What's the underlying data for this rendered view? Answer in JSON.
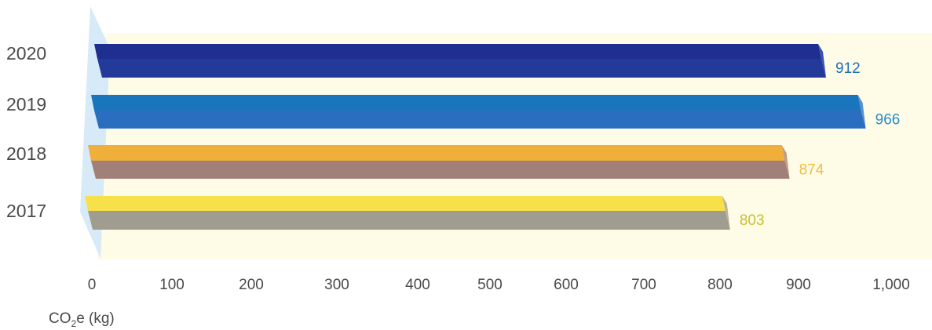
{
  "chart_data": {
    "type": "bar",
    "orientation": "horizontal",
    "style": "3d",
    "categories": [
      "2020",
      "2019",
      "2018",
      "2017"
    ],
    "values": [
      912,
      966,
      874,
      803
    ],
    "value_labels": [
      "912",
      "966",
      "874",
      "803"
    ],
    "xlabel_main": "CO",
    "xlabel_subscript": "2",
    "xlabel_rest": "e (kg)",
    "xlim": [
      0,
      1000
    ],
    "x_ticks": [
      0,
      100,
      200,
      300,
      400,
      500,
      600,
      700,
      800,
      900,
      1000
    ],
    "x_tick_labels": [
      "0",
      "100",
      "200",
      "300",
      "400",
      "500",
      "600",
      "700",
      "800",
      "900",
      "1,000"
    ],
    "grid": false,
    "colors": {
      "2020": {
        "top": "#1f2f8f",
        "face": "#243a9a",
        "side": "#3a52b0",
        "label": "#1f6fb5"
      },
      "2019": {
        "top": "#1a75bd",
        "face": "#2a6ec0",
        "side": "#5a8fd0",
        "label": "#2a8fc8"
      },
      "2018": {
        "top": "#f0ae3a",
        "face": "#a08078",
        "side": "#c09a8a",
        "label": "#f0be40"
      },
      "2017": {
        "top": "#f8e04a",
        "face": "#a09c90",
        "side": "#bdb498",
        "label": "#c8c030"
      }
    },
    "plot_background": "#fefbe6",
    "wall_color": "#d7eaf8"
  }
}
